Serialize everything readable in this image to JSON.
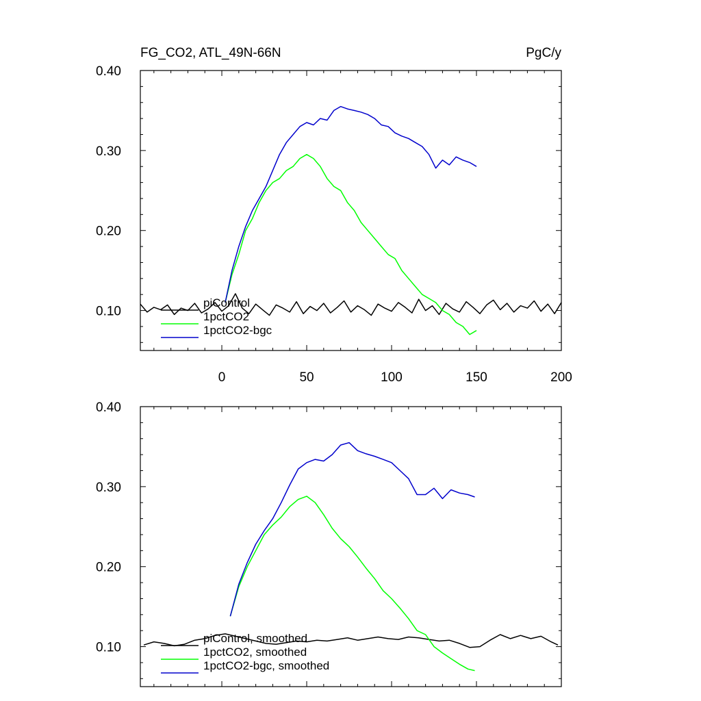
{
  "chart_data": [
    {
      "type": "line",
      "title_left": "FG_CO2, ATL_49N-66N",
      "title_right": "PgC/y",
      "xlim": [
        -48,
        200
      ],
      "ylim": [
        0.05,
        0.4
      ],
      "x_ticks": [
        0,
        50,
        100,
        150,
        200
      ],
      "x_tick_labels": [
        "0",
        "50",
        "100",
        "150",
        "200"
      ],
      "show_x_tick_labels": true,
      "y_ticks": [
        0.1,
        0.2,
        0.3,
        0.4
      ],
      "y_tick_labels": [
        "0.10",
        "0.20",
        "0.30",
        "0.40"
      ],
      "legend_position": "bottom-left",
      "series": [
        {
          "name": "piControl",
          "color": "#000000",
          "x": [
            -48,
            -44,
            -40,
            -36,
            -32,
            -28,
            -24,
            -20,
            -16,
            -12,
            -8,
            -4,
            0,
            4,
            8,
            12,
            16,
            20,
            24,
            28,
            32,
            36,
            40,
            44,
            48,
            52,
            56,
            60,
            64,
            68,
            72,
            76,
            80,
            84,
            88,
            92,
            96,
            100,
            104,
            108,
            112,
            116,
            120,
            124,
            128,
            132,
            136,
            140,
            144,
            148,
            152,
            156,
            160,
            164,
            168,
            172,
            176,
            180,
            184,
            188,
            192,
            196,
            200
          ],
          "y": [
            0.108,
            0.098,
            0.104,
            0.101,
            0.107,
            0.095,
            0.103,
            0.1,
            0.109,
            0.097,
            0.102,
            0.11,
            0.099,
            0.106,
            0.121,
            0.103,
            0.096,
            0.108,
            0.101,
            0.094,
            0.107,
            0.103,
            0.098,
            0.111,
            0.096,
            0.105,
            0.1,
            0.109,
            0.097,
            0.104,
            0.112,
            0.098,
            0.106,
            0.101,
            0.094,
            0.108,
            0.103,
            0.099,
            0.11,
            0.104,
            0.097,
            0.114,
            0.1,
            0.106,
            0.095,
            0.109,
            0.102,
            0.098,
            0.111,
            0.104,
            0.096,
            0.107,
            0.113,
            0.101,
            0.109,
            0.098,
            0.106,
            0.103,
            0.112,
            0.099,
            0.108,
            0.096,
            0.11
          ]
        },
        {
          "name": "1pctCO2",
          "color": "#00ff00",
          "x": [
            2,
            6,
            10,
            14,
            18,
            22,
            26,
            30,
            34,
            38,
            42,
            46,
            50,
            54,
            58,
            62,
            66,
            70,
            74,
            78,
            82,
            86,
            90,
            94,
            98,
            102,
            106,
            110,
            114,
            118,
            122,
            126,
            130,
            134,
            138,
            142,
            146,
            150
          ],
          "y": [
            0.11,
            0.145,
            0.17,
            0.2,
            0.215,
            0.235,
            0.25,
            0.26,
            0.265,
            0.275,
            0.28,
            0.29,
            0.295,
            0.29,
            0.28,
            0.265,
            0.255,
            0.25,
            0.235,
            0.225,
            0.21,
            0.2,
            0.19,
            0.18,
            0.17,
            0.165,
            0.15,
            0.14,
            0.13,
            0.12,
            0.115,
            0.11,
            0.1,
            0.095,
            0.085,
            0.08,
            0.07,
            0.075
          ]
        },
        {
          "name": "1pctCO2-bgc",
          "color": "#0000cc",
          "x": [
            2,
            6,
            10,
            14,
            18,
            22,
            26,
            30,
            34,
            38,
            42,
            46,
            50,
            54,
            58,
            62,
            66,
            70,
            74,
            78,
            82,
            86,
            90,
            94,
            98,
            102,
            106,
            110,
            114,
            118,
            122,
            126,
            130,
            134,
            138,
            142,
            146,
            150
          ],
          "y": [
            0.11,
            0.15,
            0.18,
            0.205,
            0.225,
            0.24,
            0.255,
            0.275,
            0.295,
            0.31,
            0.32,
            0.33,
            0.335,
            0.332,
            0.34,
            0.338,
            0.35,
            0.355,
            0.352,
            0.35,
            0.348,
            0.345,
            0.34,
            0.332,
            0.33,
            0.322,
            0.318,
            0.315,
            0.31,
            0.305,
            0.295,
            0.278,
            0.288,
            0.282,
            0.292,
            0.288,
            0.285,
            0.28
          ]
        }
      ]
    },
    {
      "type": "line",
      "xlim": [
        -48,
        200
      ],
      "ylim": [
        0.05,
        0.4
      ],
      "x_ticks": [
        0,
        50,
        100,
        150,
        200
      ],
      "show_x_tick_labels": false,
      "y_ticks": [
        0.1,
        0.2,
        0.3,
        0.4
      ],
      "y_tick_labels": [
        "0.10",
        "0.20",
        "0.30",
        "0.40"
      ],
      "legend_position": "bottom-left",
      "series": [
        {
          "name": "piControl, smoothed",
          "color": "#000000",
          "x": [
            -46,
            -40,
            -34,
            -28,
            -22,
            -16,
            -10,
            -4,
            2,
            8,
            14,
            20,
            26,
            32,
            38,
            44,
            50,
            56,
            62,
            68,
            74,
            80,
            86,
            92,
            98,
            104,
            110,
            116,
            122,
            128,
            134,
            140,
            146,
            152,
            158,
            164,
            170,
            176,
            182,
            188,
            194,
            198
          ],
          "y": [
            0.102,
            0.106,
            0.104,
            0.101,
            0.103,
            0.108,
            0.11,
            0.114,
            0.116,
            0.113,
            0.11,
            0.107,
            0.104,
            0.103,
            0.105,
            0.107,
            0.106,
            0.108,
            0.107,
            0.109,
            0.111,
            0.108,
            0.11,
            0.112,
            0.11,
            0.109,
            0.112,
            0.111,
            0.109,
            0.107,
            0.108,
            0.104,
            0.099,
            0.1,
            0.108,
            0.115,
            0.11,
            0.114,
            0.11,
            0.113,
            0.106,
            0.102
          ]
        },
        {
          "name": "1pctCO2, smoothed",
          "color": "#00ff00",
          "x": [
            5,
            10,
            15,
            20,
            25,
            30,
            35,
            40,
            45,
            50,
            55,
            60,
            65,
            70,
            75,
            80,
            85,
            90,
            95,
            100,
            105,
            110,
            115,
            120,
            125,
            130,
            135,
            140,
            145,
            149
          ],
          "y": [
            0.138,
            0.175,
            0.2,
            0.22,
            0.24,
            0.252,
            0.262,
            0.275,
            0.284,
            0.288,
            0.28,
            0.265,
            0.248,
            0.235,
            0.225,
            0.212,
            0.198,
            0.185,
            0.17,
            0.16,
            0.148,
            0.135,
            0.12,
            0.115,
            0.1,
            0.092,
            0.085,
            0.078,
            0.072,
            0.07
          ]
        },
        {
          "name": "1pctCO2-bgc, smoothed",
          "color": "#0000cc",
          "x": [
            5,
            10,
            15,
            20,
            25,
            30,
            35,
            40,
            45,
            50,
            55,
            60,
            65,
            70,
            75,
            80,
            85,
            90,
            95,
            100,
            105,
            110,
            115,
            120,
            125,
            130,
            135,
            140,
            145,
            149
          ],
          "y": [
            0.138,
            0.178,
            0.205,
            0.228,
            0.245,
            0.26,
            0.28,
            0.302,
            0.322,
            0.33,
            0.334,
            0.332,
            0.34,
            0.352,
            0.355,
            0.345,
            0.341,
            0.338,
            0.334,
            0.33,
            0.32,
            0.31,
            0.29,
            0.29,
            0.298,
            0.285,
            0.296,
            0.292,
            0.29,
            0.287
          ]
        }
      ]
    }
  ]
}
